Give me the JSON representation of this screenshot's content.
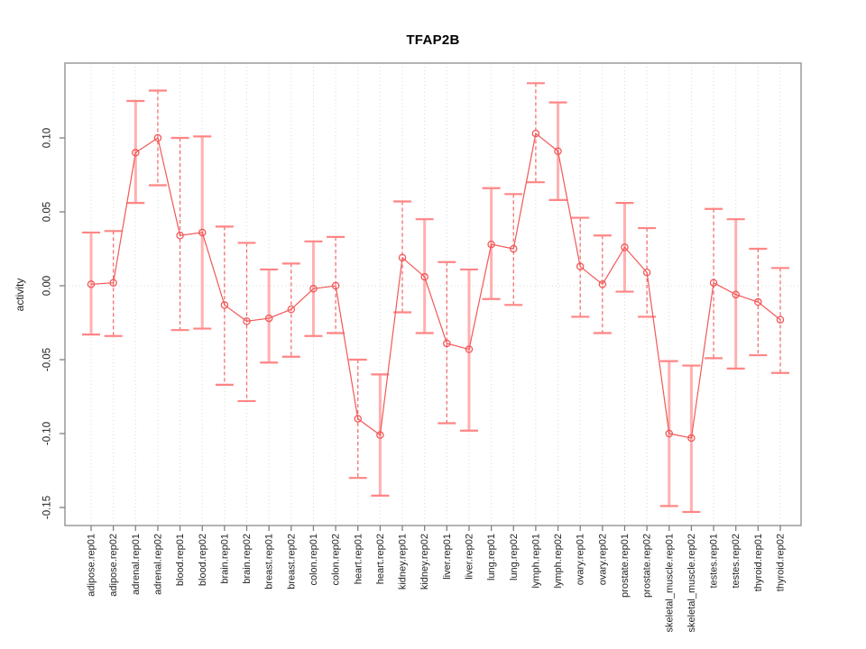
{
  "figure": {
    "background": "#ffffff"
  },
  "chart_data": {
    "type": "line",
    "subtype": "points-with-error-bars",
    "title": "TFAP2B",
    "xlabel": "",
    "ylabel": "activity",
    "legend": "none",
    "grid": "dotted vertical gridline per category; dotted horizontal line at y=0",
    "ylim": [
      -0.162,
      0.151
    ],
    "yticks": [
      0.1,
      0.05,
      0.0,
      -0.05,
      -0.1,
      -0.15
    ],
    "ytick_labels": [
      "0.10",
      "0.05",
      "0.00",
      "-0.05",
      "-0.10",
      "-0.15"
    ],
    "categories": [
      "adipose.rep01",
      "adipose.rep02",
      "adrenal.rep01",
      "adrenal.rep02",
      "blood.rep01",
      "blood.rep02",
      "brain.rep01",
      "brain.rep02",
      "breast.rep01",
      "breast.rep02",
      "colon.rep01",
      "colon.rep02",
      "heart.rep01",
      "heart.rep02",
      "kidney.rep01",
      "kidney.rep02",
      "liver.rep01",
      "liver.rep02",
      "lung.rep01",
      "lung.rep02",
      "lymph.rep01",
      "lymph.rep02",
      "ovary.rep01",
      "ovary.rep02",
      "prostate.rep01",
      "prostate.rep02",
      "skeletal_muscle.rep01",
      "skeletal_muscle.rep02",
      "testes.rep01",
      "testes.rep02",
      "thyroid.rep01",
      "thyroid.rep02"
    ],
    "values": [
      0.001,
      0.002,
      0.09,
      0.1,
      0.034,
      0.036,
      -0.013,
      -0.024,
      -0.022,
      -0.016,
      -0.002,
      0.0,
      -0.09,
      -0.101,
      0.019,
      0.006,
      -0.039,
      -0.043,
      0.028,
      0.025,
      0.103,
      0.091,
      0.013,
      0.001,
      0.026,
      0.009,
      -0.1,
      -0.103,
      0.002,
      -0.006,
      -0.011,
      -0.023
    ],
    "ci_low": [
      -0.033,
      -0.034,
      0.056,
      0.068,
      -0.03,
      -0.029,
      -0.067,
      -0.078,
      -0.052,
      -0.048,
      -0.034,
      -0.032,
      -0.13,
      -0.142,
      -0.018,
      -0.032,
      -0.093,
      -0.098,
      -0.009,
      -0.013,
      0.07,
      0.058,
      -0.021,
      -0.032,
      -0.004,
      -0.021,
      -0.149,
      -0.153,
      -0.049,
      -0.056,
      -0.047,
      -0.059
    ],
    "ci_high": [
      0.036,
      0.037,
      0.125,
      0.132,
      0.1,
      0.101,
      0.04,
      0.029,
      0.011,
      0.015,
      0.03,
      0.033,
      -0.05,
      -0.06,
      0.057,
      0.045,
      0.016,
      0.011,
      0.066,
      0.062,
      0.137,
      0.124,
      0.046,
      0.034,
      0.056,
      0.039,
      -0.051,
      -0.054,
      0.052,
      0.045,
      0.025,
      0.012
    ],
    "bar_style": [
      "solid",
      "dashed",
      "solid",
      "dashed",
      "dashed",
      "solid",
      "dashed",
      "dashed",
      "solid",
      "dashed",
      "solid",
      "dashed",
      "dashed",
      "solid",
      "dashed",
      "solid",
      "dashed",
      "solid",
      "solid",
      "dashed",
      "dashed",
      "solid",
      "dashed",
      "dashed",
      "solid",
      "dashed",
      "solid",
      "solid",
      "dashed",
      "solid",
      "dashed",
      "dashed"
    ],
    "colors": {
      "series": "#f25858",
      "error_bar_solid": "#ffb0b0",
      "error_bar_dashed": "#f25858",
      "error_bar_cap": "#ff8585",
      "gridline": "#d9d9d9",
      "zero_line": "#d9d9d9",
      "axis_box": "#9a9a9a",
      "tick": "#7f7f7f",
      "tick_label": "#1f1f1f",
      "title": "#000000"
    }
  }
}
